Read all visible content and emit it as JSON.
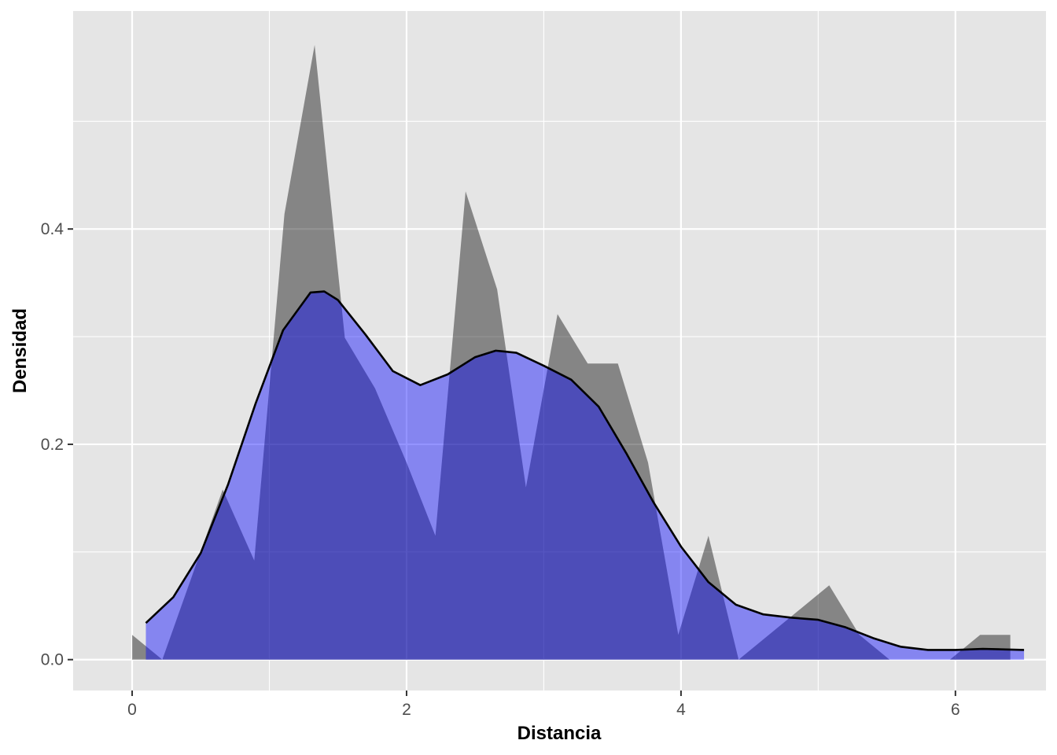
{
  "chart_data": {
    "type": "area",
    "xlabel": "Distancia",
    "ylabel": "Densidad",
    "xlim": [
      -0.43,
      6.66
    ],
    "ylim": [
      -0.0287,
      0.6025
    ],
    "x_ticks": [
      0,
      2,
      4,
      6
    ],
    "x_tick_labels": [
      "0",
      "2",
      "4",
      "6"
    ],
    "y_ticks": [
      0.0,
      0.2,
      0.4
    ],
    "y_tick_labels": [
      "0.0",
      "0.2",
      "0.4"
    ],
    "x_minor": [
      1,
      3,
      5
    ],
    "y_minor": [
      0.1,
      0.3,
      0.5
    ],
    "grid": true,
    "colors": {
      "panel": "#e5e5e5",
      "grid": "#ffffff",
      "frequency_fill": "#000000",
      "density_fill": "#0000ff",
      "density_line": "#000000"
    },
    "series": [
      {
        "type": "area",
        "fill": "#000000",
        "opacity": 0.42,
        "x": [
          0.0,
          0.22,
          0.66,
          0.89,
          1.11,
          1.33,
          1.55,
          1.77,
          2.0,
          2.21,
          2.43,
          2.66,
          2.87,
          3.1,
          3.32,
          3.54,
          3.76,
          3.98,
          4.2,
          4.42,
          4.64,
          4.86,
          5.08,
          5.3,
          5.52,
          5.74,
          5.96,
          6.18,
          6.4
        ],
        "y": [
          0.023,
          0.0,
          0.158,
          0.092,
          0.414,
          0.571,
          0.299,
          0.252,
          0.183,
          0.115,
          0.435,
          0.344,
          0.16,
          0.321,
          0.275,
          0.275,
          0.183,
          0.023,
          0.115,
          0.0,
          0.023,
          0.046,
          0.069,
          0.023,
          0.0,
          0.0,
          0.0,
          0.023,
          0.023
        ]
      },
      {
        "type": "density",
        "fill": "#0000ff",
        "opacity": 0.42,
        "line": "#000000",
        "x": [
          0.1,
          0.3,
          0.5,
          0.7,
          0.9,
          1.1,
          1.3,
          1.4,
          1.5,
          1.7,
          1.9,
          2.1,
          2.3,
          2.5,
          2.65,
          2.8,
          3.0,
          3.2,
          3.4,
          3.6,
          3.8,
          4.0,
          4.2,
          4.4,
          4.6,
          4.8,
          5.0,
          5.2,
          5.4,
          5.6,
          5.8,
          6.0,
          6.2,
          6.5
        ],
        "y": [
          0.034,
          0.058,
          0.099,
          0.163,
          0.238,
          0.306,
          0.341,
          0.342,
          0.334,
          0.302,
          0.268,
          0.255,
          0.265,
          0.281,
          0.287,
          0.285,
          0.273,
          0.26,
          0.235,
          0.192,
          0.146,
          0.105,
          0.072,
          0.051,
          0.042,
          0.039,
          0.037,
          0.03,
          0.02,
          0.012,
          0.009,
          0.009,
          0.01,
          0.009
        ]
      }
    ]
  }
}
